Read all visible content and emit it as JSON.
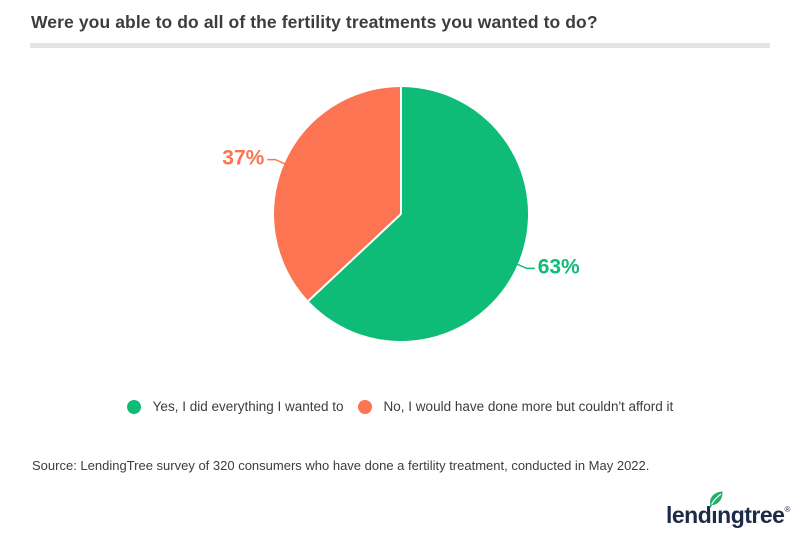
{
  "page": {
    "title": "Were you able to do all of the fertility treatments you wanted to do?",
    "source_note": "Source: LendingTree survey of 320 consumers who have done a fertility treatment, conducted in May 2022.",
    "background_color": "#ffffff",
    "divider_color": "#e4e4e4",
    "text_color": "#3d3d3d"
  },
  "chart_data": {
    "type": "pie",
    "title": "Were you able to do all of the fertility treatments you wanted to do?",
    "legend_position": "bottom",
    "start_angle_deg": 0,
    "direction": "clockwise",
    "slices": [
      {
        "label": "Yes, I did everything I wanted to",
        "value": 63,
        "data_label": "63%",
        "color": "#0FBC77"
      },
      {
        "label": "No, I would have done more but couldn't afford it",
        "value": 37,
        "data_label": "37%",
        "color": "#FC7452"
      }
    ]
  },
  "logo": {
    "label": "lendingtree",
    "part1": "lend",
    "part2": "i",
    "part3": "ngtree",
    "registered": "®",
    "navy_color": "#1d2b49",
    "leaf_color": "#21b068"
  }
}
